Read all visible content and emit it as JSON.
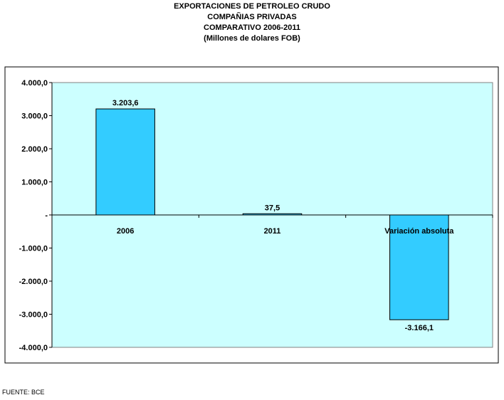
{
  "titles": {
    "line1": "EXPORTACIONES DE PETROLEO CRUDO",
    "line2": "COMPAÑIAS PRIVADAS",
    "line3": "COMPARATIVO 2006-2011",
    "line4": "(Millones de dolares FOB)"
  },
  "source": "FUENTE: BCE",
  "colors": {
    "plot_background": "#ccffff",
    "bar_fill": "#33ccff",
    "bar_stroke": "#000000",
    "frame": "#000000"
  },
  "chart_data": {
    "type": "bar",
    "title": "EXPORTACIONES DE PETROLEO CRUDO",
    "categories": [
      "2006",
      "2011",
      "Variación absoluta"
    ],
    "values": [
      3203.6,
      37.5,
      -3166.1
    ],
    "data_labels": [
      "3.203,6",
      "37,5",
      "-3.166,1"
    ],
    "ylim": [
      -4000,
      4000
    ],
    "yticks": [
      4000,
      3000,
      2000,
      1000,
      0,
      -1000,
      -2000,
      -3000,
      -4000
    ],
    "ytick_labels": [
      "4.000,0",
      "3.000,0",
      "2.000,0",
      "1.000,0",
      "-",
      "-1.000,0",
      "-2.000,0",
      "-3.000,0",
      "-4.000,0"
    ],
    "xlabel": "",
    "ylabel": "",
    "grid": false,
    "legend": "none"
  }
}
